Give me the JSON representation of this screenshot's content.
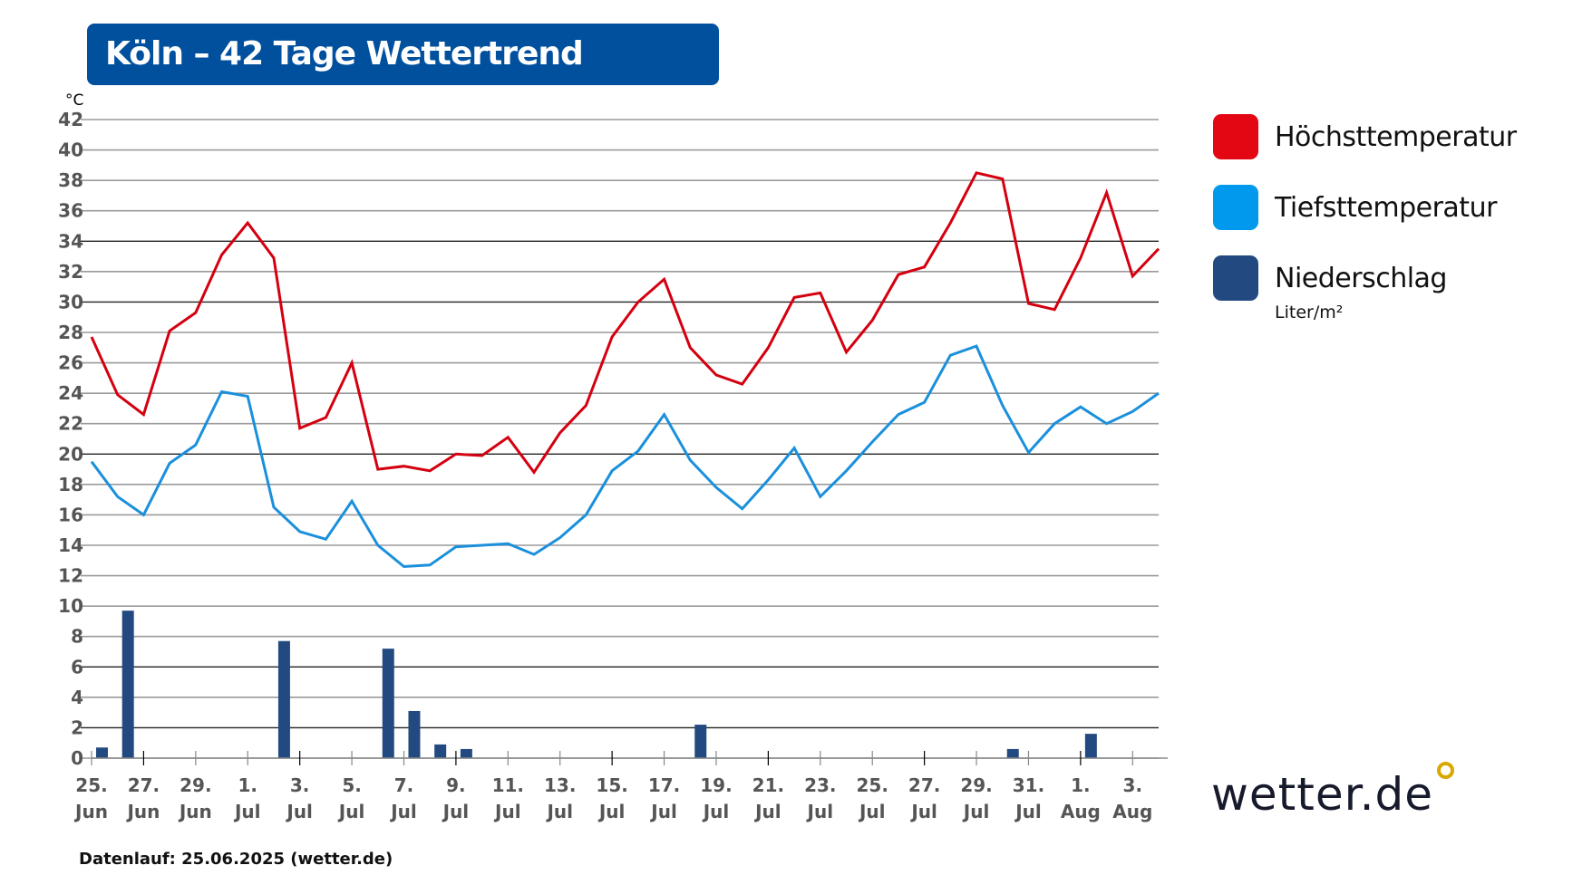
{
  "title": "Köln – 42 Tage Wettertrend",
  "footer": "Datenlauf: 25.06.2025 (wetter.de)",
  "logo_text": "wetter.de",
  "legend": [
    {
      "label": "Höchsttemperatur",
      "color": "#e30613"
    },
    {
      "label": "Tiefsttemperatur",
      "color": "#0099ee"
    },
    {
      "label": "Niederschlag",
      "color": "#234a80",
      "unit": "Liter/m²"
    }
  ],
  "chart_data": {
    "type": "line",
    "ylabel": "°C",
    "ylim": [
      0,
      42
    ],
    "yticks": [
      0,
      2,
      4,
      6,
      8,
      10,
      12,
      14,
      16,
      18,
      20,
      22,
      24,
      26,
      28,
      30,
      32,
      34,
      36,
      38,
      40,
      42
    ],
    "grid": true,
    "legend_position": "right",
    "x_tick_labels": [
      [
        "25.",
        "Jun"
      ],
      [
        "27.",
        "Jun"
      ],
      [
        "29.",
        "Jun"
      ],
      [
        "1.",
        "Jul"
      ],
      [
        "3.",
        "Jul"
      ],
      [
        "5.",
        "Jul"
      ],
      [
        "7.",
        "Jul"
      ],
      [
        "9.",
        "Jul"
      ],
      [
        "11.",
        "Jul"
      ],
      [
        "13.",
        "Jul"
      ],
      [
        "15.",
        "Jul"
      ],
      [
        "17.",
        "Jul"
      ],
      [
        "19.",
        "Jul"
      ],
      [
        "21.",
        "Jul"
      ],
      [
        "23.",
        "Jul"
      ],
      [
        "25.",
        "Jul"
      ],
      [
        "27.",
        "Jul"
      ],
      [
        "29.",
        "Jul"
      ],
      [
        "31.",
        "Jul"
      ],
      [
        "1.",
        "Aug"
      ],
      [
        "3.",
        "Aug"
      ]
    ],
    "series": [
      {
        "name": "Höchsttemperatur",
        "type": "line",
        "color": "#d40010",
        "values": [
          27.7,
          23.9,
          22.6,
          28.1,
          29.3,
          33.1,
          35.2,
          32.9,
          21.7,
          22.4,
          26.0,
          19.0,
          19.2,
          18.9,
          20.0,
          19.9,
          21.1,
          18.8,
          21.4,
          23.2,
          27.7,
          30.0,
          31.5,
          27.0,
          25.2,
          24.6,
          27.0,
          30.3,
          30.6,
          26.7,
          28.8,
          31.8,
          32.3,
          35.2,
          38.5,
          38.1,
          29.9,
          29.5,
          32.9,
          37.2,
          31.7,
          33.5
        ]
      },
      {
        "name": "Tiefsttemperatur",
        "type": "line",
        "color": "#1a90dc",
        "values": [
          19.5,
          17.2,
          16.0,
          19.4,
          20.6,
          24.1,
          23.8,
          16.5,
          14.9,
          14.4,
          16.9,
          14.0,
          12.6,
          12.7,
          13.9,
          14.0,
          14.1,
          13.4,
          14.5,
          16.0,
          18.9,
          20.2,
          22.6,
          19.6,
          17.8,
          16.4,
          18.3,
          20.4,
          17.2,
          18.9,
          20.8,
          22.6,
          23.4,
          26.5,
          27.1,
          23.2,
          20.1,
          22.0,
          23.1,
          22.0,
          22.8,
          24.0
        ]
      },
      {
        "name": "Niederschlag",
        "type": "bar",
        "color": "#234a80",
        "values": [
          0.7,
          9.7,
          0,
          0,
          0,
          0,
          0,
          7.7,
          0,
          0,
          0,
          7.2,
          3.1,
          0.9,
          0.6,
          0,
          0,
          0,
          0,
          0,
          0,
          0,
          0,
          2.2,
          0,
          0,
          0,
          0,
          0,
          0,
          0,
          0,
          0,
          0,
          0,
          0.6,
          0,
          0,
          1.6,
          0,
          0,
          0
        ]
      }
    ]
  }
}
